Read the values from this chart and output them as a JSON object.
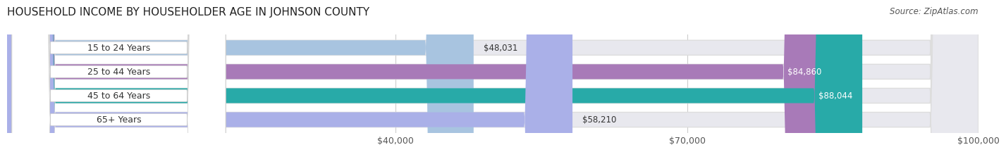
{
  "title": "HOUSEHOLD INCOME BY HOUSEHOLDER AGE IN JOHNSON COUNTY",
  "source": "Source: ZipAtlas.com",
  "categories": [
    "15 to 24 Years",
    "25 to 44 Years",
    "45 to 64 Years",
    "65+ Years"
  ],
  "values": [
    48031,
    84860,
    88044,
    58210
  ],
  "bar_colors": [
    "#a8c4e0",
    "#a87ab8",
    "#28aaa8",
    "#aab0e8"
  ],
  "value_labels": [
    "$48,031",
    "$84,860",
    "$88,044",
    "$58,210"
  ],
  "value_inside": [
    false,
    true,
    true,
    false
  ],
  "xlim_min": 0,
  "xlim_max": 100000,
  "xticks": [
    40000,
    70000,
    100000
  ],
  "xtick_labels": [
    "$40,000",
    "$70,000",
    "$100,000"
  ],
  "background_color": "#ffffff",
  "bar_bg_color": "#e8e8ee",
  "bar_height": 0.62,
  "title_fontsize": 11,
  "source_fontsize": 8.5,
  "label_fontsize": 9,
  "value_fontsize": 8.5,
  "label_box_color": "#ffffff",
  "grid_color": "#cccccc"
}
